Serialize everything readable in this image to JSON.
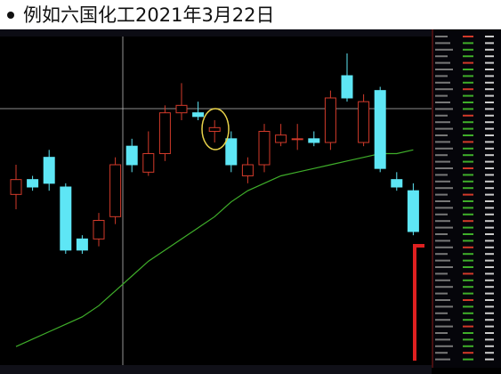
{
  "title": "例如六国化工2021年3月22日",
  "chart_data": {
    "type": "candlestick",
    "ylim": [
      4.4,
      5.3
    ],
    "up_color": "#d23a2a",
    "down_color": "#5ee6f5",
    "ma_color": "#3fae2a",
    "open": [
      4.86,
      4.9,
      4.96,
      4.88,
      4.74,
      4.74,
      4.8,
      4.99,
      4.92,
      4.97,
      5.08,
      5.08,
      5.03,
      5.01,
      4.91,
      4.94,
      5.0,
      5.01,
      5.01,
      5.0,
      5.18,
      5.0,
      5.14,
      4.9,
      4.87
    ],
    "close": [
      4.9,
      4.88,
      4.89,
      4.71,
      4.71,
      4.79,
      4.94,
      4.94,
      4.97,
      5.08,
      5.1,
      5.07,
      5.04,
      4.94,
      4.94,
      5.03,
      5.02,
      5.01,
      5.0,
      5.12,
      5.12,
      5.11,
      4.93,
      4.88,
      4.76
    ],
    "high": [
      4.94,
      4.91,
      4.98,
      4.89,
      4.75,
      4.81,
      4.96,
      5.01,
      5.03,
      5.1,
      5.16,
      5.11,
      5.06,
      5.03,
      4.96,
      5.05,
      5.05,
      5.05,
      5.03,
      5.14,
      5.24,
      5.13,
      5.15,
      4.92,
      4.89
    ],
    "low": [
      4.82,
      4.87,
      4.87,
      4.7,
      4.7,
      4.72,
      4.78,
      4.92,
      4.91,
      4.95,
      5.06,
      5.06,
      5.0,
      4.92,
      4.89,
      4.92,
      4.99,
      4.98,
      4.99,
      4.98,
      5.11,
      4.99,
      4.92,
      4.87,
      4.75
    ],
    "ma": [
      4.45,
      4.47,
      4.49,
      4.51,
      4.53,
      4.56,
      4.6,
      4.64,
      4.68,
      4.71,
      4.74,
      4.77,
      4.8,
      4.84,
      4.87,
      4.89,
      4.91,
      4.92,
      4.93,
      4.94,
      4.95,
      4.96,
      4.97,
      4.97,
      4.98
    ]
  }
}
